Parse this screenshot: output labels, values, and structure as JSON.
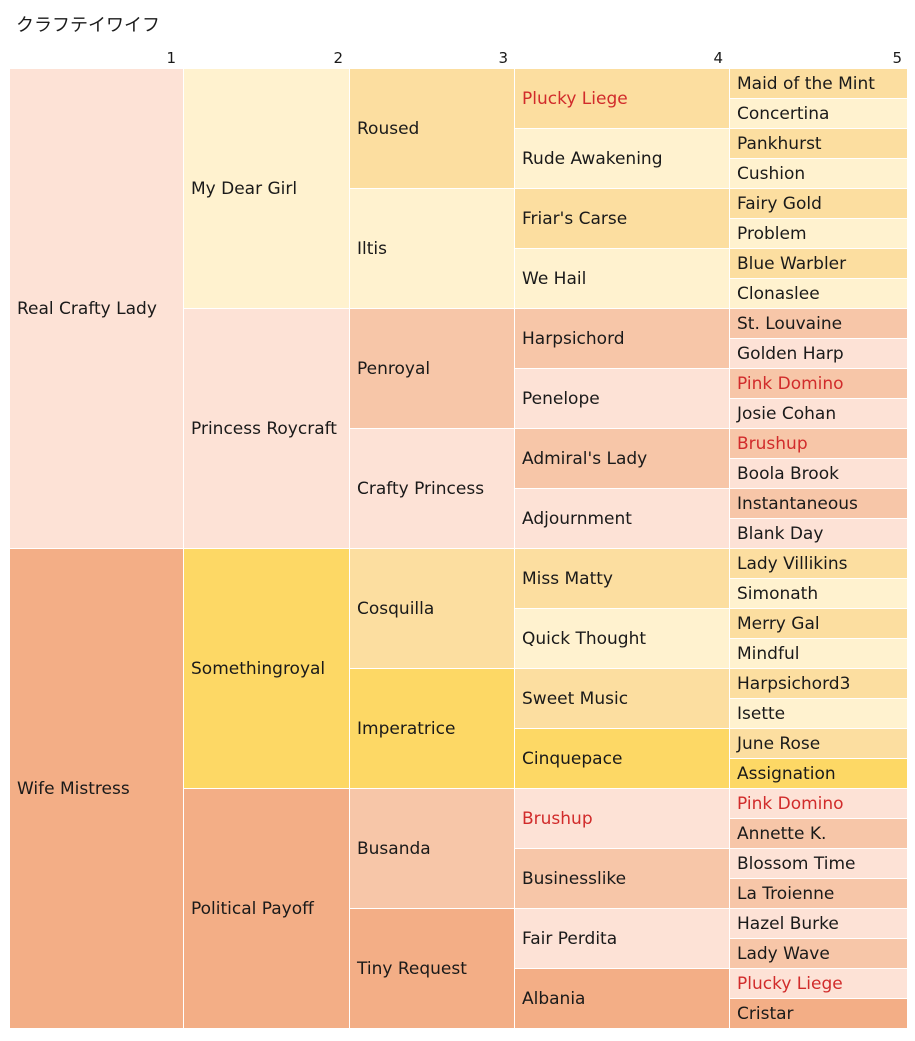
{
  "title": "クラフテイワイフ",
  "generations": [
    "1",
    "2",
    "3",
    "4",
    "5"
  ],
  "colors": {
    "a1": "#fde2d6",
    "a2": "#f3ae86",
    "b1": "#fff2cf",
    "b2": "#fcdea0",
    "b3": "#fdd865",
    "c1": "#fde2d6",
    "c2": "#f7c6a8",
    "c3": "#f3ae86",
    "highlight_text": "#d12b2b"
  },
  "tree": {
    "name": "Real Crafty Lady",
    "sire": null,
    "root_sire": {
      "name": "Real Crafty Lady",
      "color": "a1",
      "sire": {
        "name": "My Dear Girl",
        "color": "b1",
        "sire": {
          "name": "Roused",
          "color": "b2",
          "sire": {
            "name": "Plucky Liege",
            "color": "b2",
            "highlight": true,
            "sire": {
              "name": "Maid of the Mint",
              "color": "b2"
            },
            "dam": {
              "name": "Concertina",
              "color": "b1"
            }
          },
          "dam": {
            "name": "Rude Awakening",
            "color": "b1",
            "sire": {
              "name": "Pankhurst",
              "color": "b2"
            },
            "dam": {
              "name": "Cushion",
              "color": "b1"
            }
          }
        },
        "dam": {
          "name": "Iltis",
          "color": "b1",
          "sire": {
            "name": "Friar's Carse",
            "color": "b2",
            "sire": {
              "name": "Fairy Gold",
              "color": "b2"
            },
            "dam": {
              "name": "Problem",
              "color": "b1"
            }
          },
          "dam": {
            "name": "We Hail",
            "color": "b1",
            "sire": {
              "name": "Blue Warbler",
              "color": "b2"
            },
            "dam": {
              "name": "Clonaslee",
              "color": "b1"
            }
          }
        }
      },
      "dam": {
        "name": "Princess Roycraft",
        "color": "c1",
        "sire": {
          "name": "Penroyal",
          "color": "c2",
          "sire": {
            "name": "Harpsichord",
            "color": "c2",
            "sire": {
              "name": "St. Louvaine",
              "color": "c2"
            },
            "dam": {
              "name": "Golden Harp",
              "color": "c1"
            }
          },
          "dam": {
            "name": "Penelope",
            "color": "c1",
            "sire": {
              "name": "Pink Domino",
              "color": "c2",
              "highlight": true
            },
            "dam": {
              "name": "Josie Cohan",
              "color": "c1"
            }
          }
        },
        "dam": {
          "name": "Crafty Princess",
          "color": "c1",
          "sire": {
            "name": "Admiral's Lady",
            "color": "c2",
            "sire": {
              "name": "Brushup",
              "color": "c2",
              "highlight": true
            },
            "dam": {
              "name": "Boola Brook",
              "color": "c1"
            }
          },
          "dam": {
            "name": "Adjournment",
            "color": "c1",
            "sire": {
              "name": "Instantaneous",
              "color": "c2"
            },
            "dam": {
              "name": "Blank Day",
              "color": "c1"
            }
          }
        }
      }
    },
    "root_dam": {
      "name": "Wife Mistress",
      "color": "a2",
      "sire": {
        "name": "Somethingroyal",
        "color": "b3",
        "sire": {
          "name": "Cosquilla",
          "color": "b2",
          "sire": {
            "name": "Miss Matty",
            "color": "b2",
            "sire": {
              "name": "Lady Villikins",
              "color": "b2"
            },
            "dam": {
              "name": "Simonath",
              "color": "b1"
            }
          },
          "dam": {
            "name": "Quick Thought",
            "color": "b1",
            "sire": {
              "name": "Merry Gal",
              "color": "b2"
            },
            "dam": {
              "name": "Mindful",
              "color": "b1"
            }
          }
        },
        "dam": {
          "name": "Imperatrice",
          "color": "b3",
          "sire": {
            "name": "Sweet Music",
            "color": "b2",
            "sire": {
              "name": "Harpsichord3",
              "color": "b2"
            },
            "dam": {
              "name": "Isette",
              "color": "b1"
            }
          },
          "dam": {
            "name": "Cinquepace",
            "color": "b3",
            "sire": {
              "name": "June Rose",
              "color": "b2"
            },
            "dam": {
              "name": "Assignation",
              "color": "b3"
            }
          }
        }
      },
      "dam": {
        "name": "Political Payoff",
        "color": "c3",
        "sire": {
          "name": "Busanda",
          "color": "c2",
          "sire": {
            "name": "Brushup",
            "color": "c1",
            "highlight": true,
            "sire": {
              "name": "Pink Domino",
              "color": "c1",
              "highlight": true
            },
            "dam": {
              "name": "Annette K.",
              "color": "c2"
            }
          },
          "dam": {
            "name": "Businesslike",
            "color": "c2",
            "sire": {
              "name": "Blossom Time",
              "color": "c1"
            },
            "dam": {
              "name": "La Troienne",
              "color": "c2"
            }
          }
        },
        "dam": {
          "name": "Tiny Request",
          "color": "c3",
          "sire": {
            "name": "Fair Perdita",
            "color": "c1",
            "sire": {
              "name": "Hazel Burke",
              "color": "c1"
            },
            "dam": {
              "name": "Lady Wave",
              "color": "c2"
            }
          },
          "dam": {
            "name": "Albania",
            "color": "c3",
            "sire": {
              "name": "Plucky Liege",
              "color": "c1",
              "highlight": true
            },
            "dam": {
              "name": "Cristar",
              "color": "c3"
            }
          }
        }
      }
    }
  }
}
